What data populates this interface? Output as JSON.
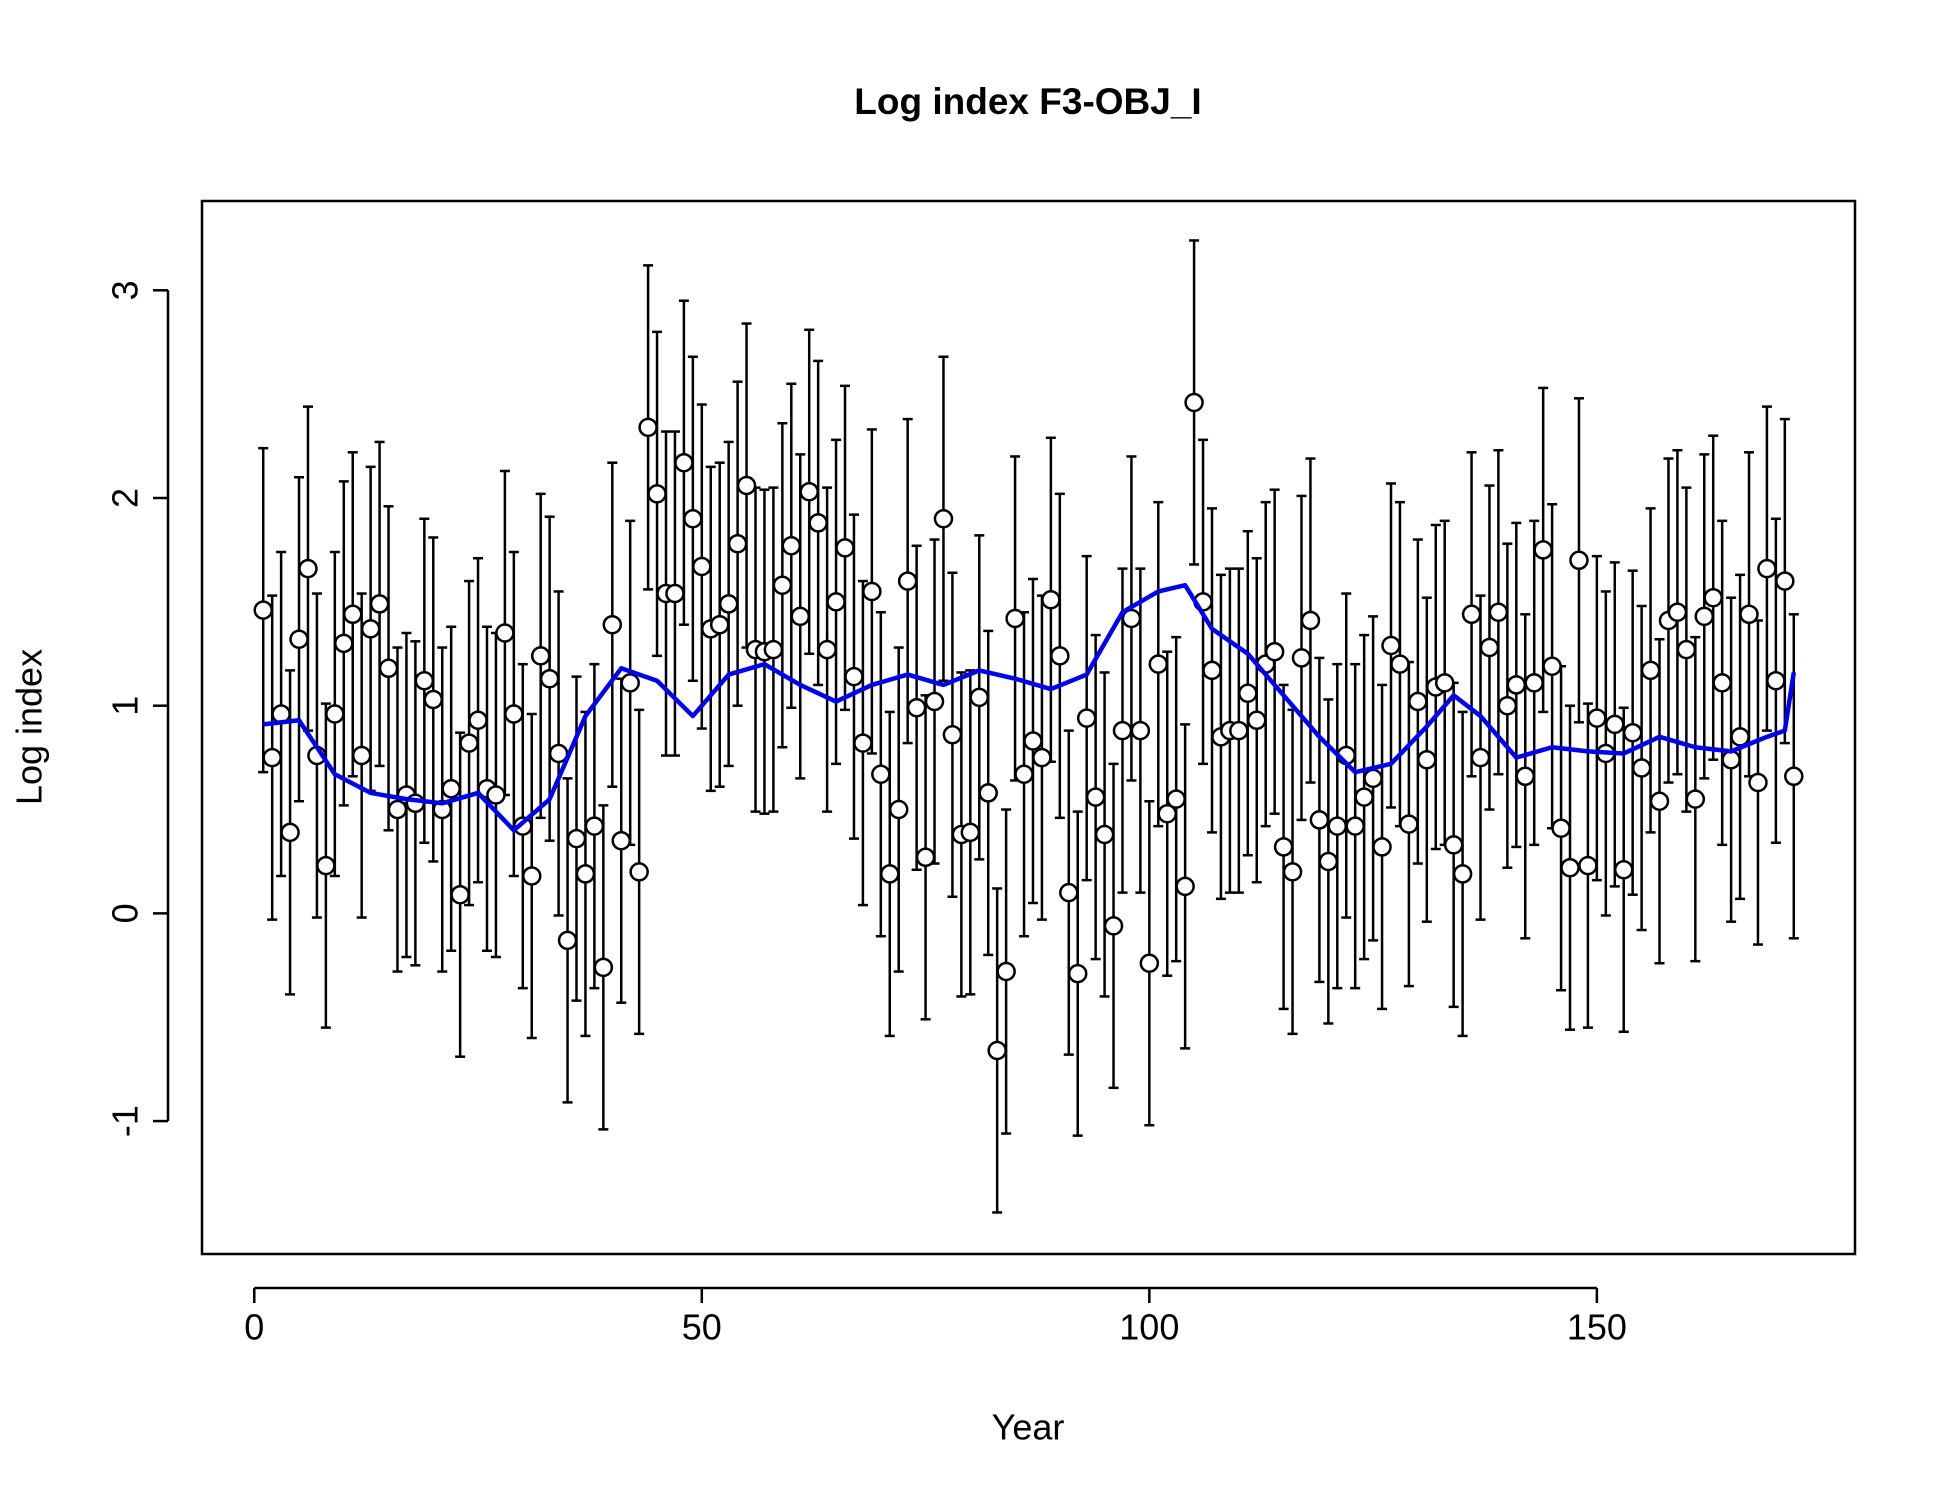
{
  "chart_data": {
    "type": "scatter",
    "title": "Log index F3-OBJ_I",
    "x_label": "Year",
    "y_label": "Log index",
    "xlim": [
      -5.84,
      178.84
    ],
    "ylim": [
      -1.64,
      3.43
    ],
    "xticks": [
      0,
      50,
      100,
      150
    ],
    "yticks": [
      -1,
      0,
      1,
      2,
      3
    ],
    "series": [
      {
        "type": "scatter",
        "color": "#000000",
        "error": 0.78,
        "x": [
          1,
          2,
          3,
          4,
          5,
          6,
          7,
          8,
          9,
          10,
          11,
          12,
          13,
          14,
          15,
          16,
          17,
          18,
          19,
          20,
          21,
          22,
          23,
          24,
          25,
          26,
          27,
          28,
          29,
          30,
          31,
          32,
          33,
          34,
          35,
          36,
          37,
          38,
          39,
          40,
          41,
          42,
          43,
          44,
          45,
          46,
          47,
          48,
          49,
          50,
          51,
          52,
          53,
          54,
          55,
          56,
          57,
          58,
          59,
          60,
          61,
          62,
          63,
          64,
          65,
          66,
          67,
          68,
          69,
          70,
          71,
          72,
          73,
          74,
          75,
          76,
          77,
          78,
          79,
          80,
          81,
          82,
          83,
          84,
          85,
          86,
          87,
          88,
          89,
          90,
          91,
          92,
          93,
          94,
          95,
          96,
          97,
          98,
          99,
          100,
          101,
          102,
          103,
          104,
          105,
          106,
          107,
          108,
          109,
          110,
          111,
          112,
          113,
          114,
          115,
          116,
          117,
          118,
          119,
          120,
          121,
          122,
          123,
          124,
          125,
          126,
          127,
          128,
          129,
          130,
          131,
          132,
          133,
          134,
          135,
          136,
          137,
          138,
          139,
          140,
          141,
          142,
          143,
          144,
          145,
          146,
          147,
          148,
          149,
          150,
          151,
          152,
          153,
          154,
          155,
          156,
          157,
          158,
          159,
          160,
          161,
          162,
          163,
          164,
          165,
          166,
          167,
          168,
          169,
          170,
          171,
          172
        ],
        "values": [
          1.46,
          0.75,
          0.96,
          0.39,
          1.32,
          1.66,
          0.76,
          0.23,
          0.96,
          1.3,
          1.44,
          0.76,
          1.37,
          1.49,
          1.18,
          0.5,
          0.57,
          0.53,
          1.12,
          1.03,
          0.5,
          0.6,
          0.09,
          0.82,
          0.93,
          0.6,
          0.57,
          1.35,
          0.96,
          0.42,
          0.18,
          1.24,
          1.13,
          0.77,
          -0.13,
          0.36,
          0.19,
          0.42,
          -0.26,
          1.39,
          0.35,
          1.11,
          0.2,
          2.34,
          2.02,
          1.54,
          1.54,
          2.17,
          1.9,
          1.67,
          1.37,
          1.39,
          1.49,
          1.78,
          2.06,
          1.27,
          1.26,
          1.27,
          1.58,
          1.77,
          1.43,
          2.03,
          1.88,
          1.27,
          1.5,
          1.76,
          1.14,
          0.82,
          1.55,
          0.67,
          0.19,
          0.5,
          1.6,
          0.99,
          0.27,
          1.02,
          1.9,
          0.86,
          0.38,
          0.39,
          1.04,
          0.58,
          -0.66,
          -0.28,
          1.42,
          0.67,
          0.83,
          0.75,
          1.51,
          1.24,
          0.1,
          -0.29,
          0.94,
          0.56,
          0.38,
          -0.06,
          0.88,
          1.42,
          0.88,
          -0.24,
          1.2,
          0.48,
          0.55,
          0.13,
          2.46,
          1.5,
          1.17,
          0.85,
          0.88,
          0.88,
          1.06,
          0.93,
          1.2,
          1.26,
          0.32,
          0.2,
          1.23,
          1.41,
          0.45,
          0.25,
          0.42,
          0.76,
          0.42,
          0.56,
          0.65,
          0.32,
          1.29,
          1.2,
          0.43,
          1.02,
          0.74,
          1.09,
          1.11,
          0.33,
          0.19,
          1.44,
          0.75,
          1.28,
          1.45,
          1.0,
          1.1,
          0.66,
          1.11,
          1.75,
          1.19,
          0.41,
          0.22,
          1.7,
          0.23,
          0.94,
          0.77,
          0.91,
          0.21,
          0.87,
          0.7,
          1.17,
          0.54,
          1.41,
          1.45,
          1.27,
          0.55,
          1.43,
          1.52,
          1.11,
          0.74,
          0.85,
          1.44,
          0.63,
          1.66,
          1.12,
          1.6,
          0.66
        ]
      },
      {
        "type": "line",
        "color": "#0000ff",
        "x": [
          1,
          5,
          9,
          13,
          17,
          21,
          25,
          29,
          33,
          37,
          41,
          45,
          49,
          53,
          57,
          61,
          65,
          69,
          73,
          77,
          81,
          85,
          89,
          93,
          97,
          101,
          104,
          107,
          111,
          115,
          119,
          123,
          127,
          131,
          134,
          137,
          141,
          145,
          149,
          153,
          157,
          161,
          165,
          169,
          171,
          172
        ],
        "values": [
          0.91,
          0.93,
          0.67,
          0.58,
          0.55,
          0.53,
          0.58,
          0.4,
          0.55,
          0.95,
          1.18,
          1.12,
          0.95,
          1.15,
          1.2,
          1.1,
          1.02,
          1.1,
          1.15,
          1.1,
          1.17,
          1.13,
          1.08,
          1.15,
          1.45,
          1.55,
          1.58,
          1.37,
          1.25,
          1.05,
          0.85,
          0.68,
          0.72,
          0.9,
          1.05,
          0.95,
          0.75,
          0.8,
          0.78,
          0.77,
          0.85,
          0.8,
          0.78,
          0.85,
          0.88,
          1.16
        ]
      }
    ]
  }
}
